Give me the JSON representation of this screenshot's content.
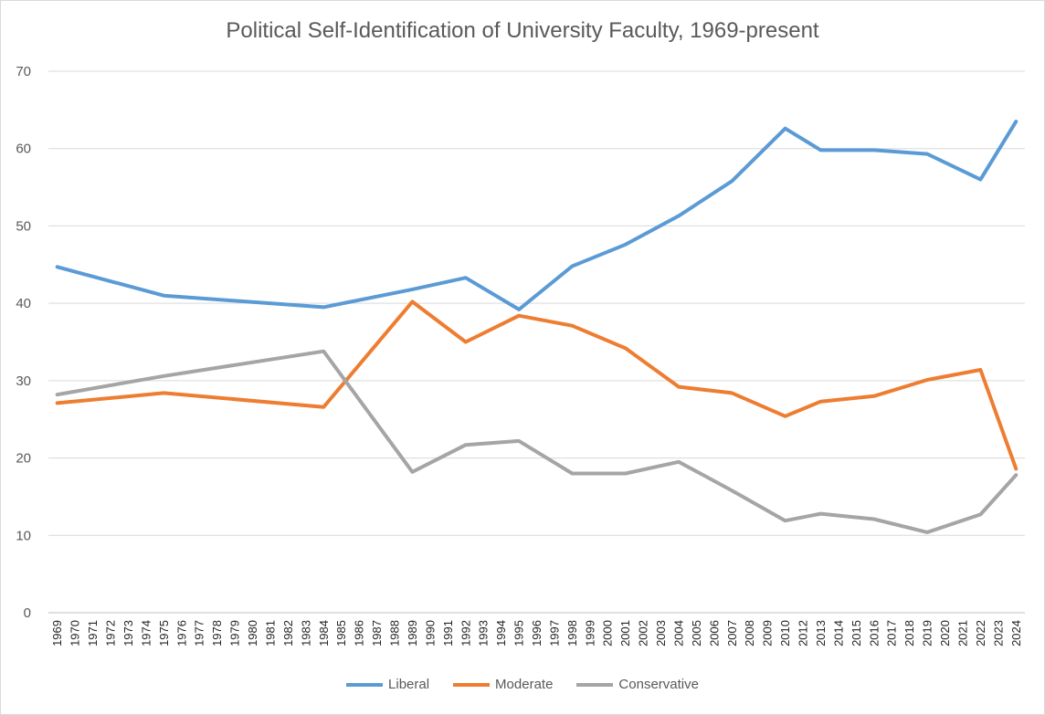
{
  "chart_data": {
    "type": "line",
    "title": "Political Self-Identification of University Faculty, 1969-present",
    "xlabel": "",
    "ylabel": "",
    "ylim": [
      0,
      70
    ],
    "yticks": [
      "0",
      "10",
      "20",
      "30",
      "40",
      "50",
      "60",
      "70"
    ],
    "grid": "horizontal",
    "legend_position": "bottom",
    "categories": [
      "1969",
      "1970",
      "1971",
      "1972",
      "1973",
      "1974",
      "1975",
      "1976",
      "1977",
      "1978",
      "1979",
      "1980",
      "1981",
      "1982",
      "1983",
      "1984",
      "1985",
      "1986",
      "1987",
      "1988",
      "1989",
      "1990",
      "1991",
      "1992",
      "1993",
      "1994",
      "1995",
      "1996",
      "1997",
      "1998",
      "1999",
      "2000",
      "2001",
      "2002",
      "2003",
      "2004",
      "2005",
      "2006",
      "2007",
      "2008",
      "2009",
      "2010",
      "2012",
      "2013",
      "2014",
      "2015",
      "2016",
      "2017",
      "2018",
      "2019",
      "2020",
      "2021",
      "2022",
      "2023",
      "2024"
    ],
    "series": [
      {
        "name": "Liberal",
        "color": "#5b9bd5",
        "points": [
          [
            "1969",
            44.7
          ],
          [
            "1975",
            41.0
          ],
          [
            "1984",
            39.5
          ],
          [
            "1989",
            41.8
          ],
          [
            "1992",
            43.3
          ],
          [
            "1995",
            39.2
          ],
          [
            "1998",
            44.8
          ],
          [
            "2001",
            47.6
          ],
          [
            "2004",
            51.3
          ],
          [
            "2007",
            55.8
          ],
          [
            "2010",
            62.6
          ],
          [
            "2013",
            59.8
          ],
          [
            "2016",
            59.8
          ],
          [
            "2019",
            59.3
          ],
          [
            "2022",
            56.0
          ],
          [
            "2024",
            63.5
          ]
        ]
      },
      {
        "name": "Moderate",
        "color": "#ed7d31",
        "points": [
          [
            "1969",
            27.1
          ],
          [
            "1975",
            28.4
          ],
          [
            "1984",
            26.6
          ],
          [
            "1989",
            40.2
          ],
          [
            "1992",
            35.0
          ],
          [
            "1995",
            38.4
          ],
          [
            "1998",
            37.1
          ],
          [
            "2001",
            34.2
          ],
          [
            "2004",
            29.2
          ],
          [
            "2007",
            28.4
          ],
          [
            "2010",
            25.4
          ],
          [
            "2013",
            27.3
          ],
          [
            "2016",
            28.0
          ],
          [
            "2019",
            30.1
          ],
          [
            "2022",
            31.4
          ],
          [
            "2024",
            18.6
          ]
        ]
      },
      {
        "name": "Conservative",
        "color": "#a5a5a5",
        "points": [
          [
            "1969",
            28.2
          ],
          [
            "1975",
            30.6
          ],
          [
            "1984",
            33.8
          ],
          [
            "1989",
            18.2
          ],
          [
            "1992",
            21.7
          ],
          [
            "1995",
            22.2
          ],
          [
            "1998",
            18.0
          ],
          [
            "2001",
            18.0
          ],
          [
            "2004",
            19.5
          ],
          [
            "2007",
            15.8
          ],
          [
            "2010",
            11.9
          ],
          [
            "2013",
            12.8
          ],
          [
            "2016",
            12.1
          ],
          [
            "2019",
            10.4
          ],
          [
            "2022",
            12.7
          ],
          [
            "2024",
            17.8
          ]
        ]
      }
    ]
  }
}
